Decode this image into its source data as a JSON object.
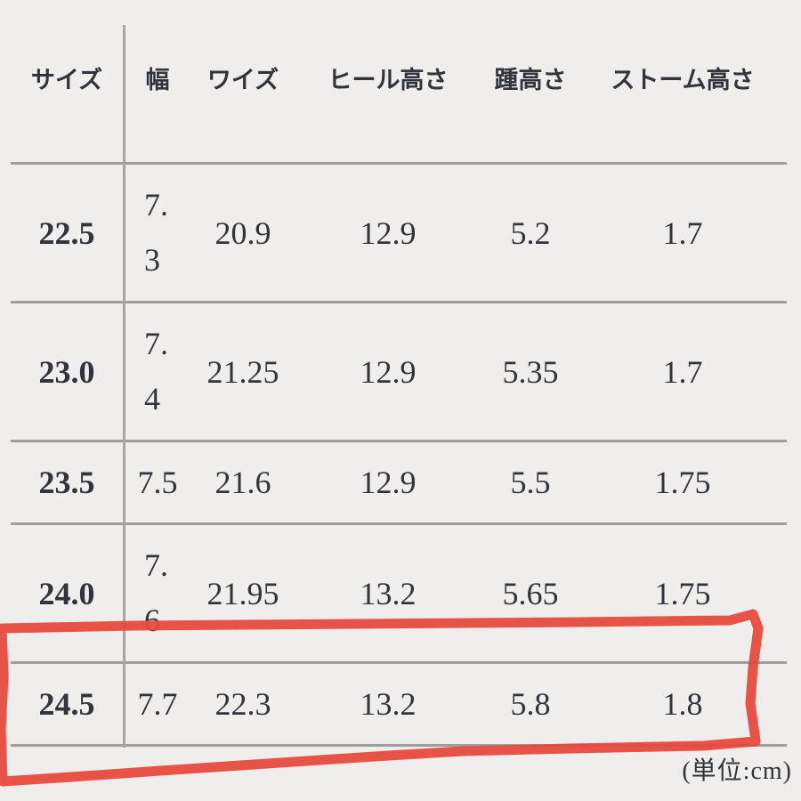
{
  "page": {
    "background_color": "#efeeec",
    "text_color": "#31343a",
    "line_color": "#9e9e9c",
    "annotation_color": "#e64a3e"
  },
  "table": {
    "columns": [
      {
        "key": "size",
        "label": "サイズ"
      },
      {
        "key": "width",
        "label": "幅"
      },
      {
        "key": "wise",
        "label": "ワイズ"
      },
      {
        "key": "heel_height",
        "label": "ヒール高さ"
      },
      {
        "key": "back_heel_height",
        "label": "踵高さ"
      },
      {
        "key": "storm_height",
        "label": "ストーム高さ"
      }
    ],
    "rows": [
      {
        "size": "22.5",
        "width": "7.3",
        "width_wrapped": true,
        "wise": "20.9",
        "heel_height": "12.9",
        "back_heel_height": "5.2",
        "storm_height": "1.7"
      },
      {
        "size": "23.0",
        "width": "7.4",
        "width_wrapped": true,
        "wise": "21.25",
        "heel_height": "12.9",
        "back_heel_height": "5.35",
        "storm_height": "1.7"
      },
      {
        "size": "23.5",
        "width": "7.5",
        "width_wrapped": false,
        "wise": "21.6",
        "heel_height": "12.9",
        "back_heel_height": "5.5",
        "storm_height": "1.75"
      },
      {
        "size": "24.0",
        "width": "7.6",
        "width_wrapped": true,
        "wise": "21.95",
        "heel_height": "13.2",
        "back_heel_height": "5.65",
        "storm_height": "1.75"
      },
      {
        "size": "24.5",
        "width": "7.7",
        "width_wrapped": false,
        "wise": "22.3",
        "heel_height": "13.2",
        "back_heel_height": "5.8",
        "storm_height": "1.8"
      }
    ],
    "unit_note": "(単位:cm)"
  },
  "annotation": {
    "shape": "hand-drawn-rectangle",
    "color": "#e64a3e",
    "highlighted_row_size": "24.5"
  }
}
